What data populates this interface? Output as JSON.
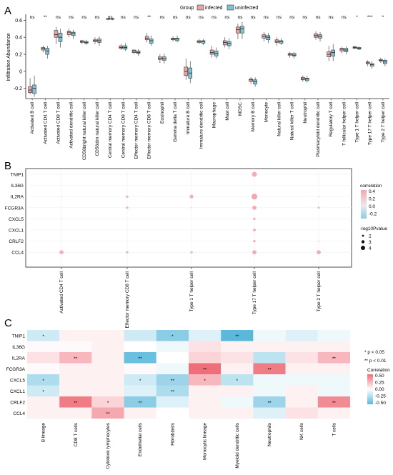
{
  "panels": [
    {
      "id": "A",
      "panel_label": "A",
      "chart_data": {
        "type": "boxplot",
        "title": "",
        "ylabel": "Infiltration Abundance",
        "xlabel": "",
        "ylim": [
          -0.32,
          0.67
        ],
        "yticks": [
          -0.2,
          0.0,
          0.2,
          0.4,
          0.6
        ],
        "ytick_labels": [
          "-0.2",
          "0",
          "0.2",
          "0.4",
          "0.6"
        ],
        "legend_title": "Group",
        "legend_position": "top",
        "series": [
          {
            "name": "infected",
            "color": "#e8a4a8"
          },
          {
            "name": "uninfected",
            "color": "#7ec4d4"
          }
        ],
        "categories": [
          "Activated B cell",
          "Activated CD4 T cell",
          "Activated CD8 T cell",
          "Activated dendritic cell",
          "CD56bright natural killer cell",
          "CD56dim natural killer cell",
          "Central memory CD4 T cell",
          "Central memory CD8 T cell",
          "Effector memory CD4 T cell",
          "Effector memory CD8 T cell",
          "Eosinophil",
          "Gamma delta T cell",
          "Immature  B cell",
          "Immature dendritic cell",
          "Macrophage",
          "Mast cell",
          "MDSC",
          "Memory B cell",
          "Monocyte",
          "Natural killer cell",
          "Natural killer T cell",
          "Neutrophil",
          "Plasmacytoid dendritic cell",
          "Regulatory T cell",
          "T follicular helper cell",
          "Type 1 T helper cell",
          "Type 17 T helper cell",
          "Type 2 T helper cell"
        ],
        "significance": [
          "ns",
          "**",
          "ns",
          "ns",
          "ns",
          "ns",
          "ns",
          "ns",
          "ns",
          "**",
          "ns",
          "ns",
          "ns",
          "ns",
          "ns",
          "ns",
          "ns",
          "ns",
          "ns",
          "ns",
          "ns",
          "ns",
          "ns",
          "ns",
          "ns",
          "*",
          "***",
          "*"
        ],
        "infected": [
          [
            -0.27,
            -0.25,
            -0.22,
            -0.18,
            -0.08
          ],
          [
            0.22,
            0.25,
            0.27,
            0.28,
            0.3
          ],
          [
            0.32,
            0.4,
            0.43,
            0.48,
            0.52
          ],
          [
            0.4,
            0.43,
            0.46,
            0.47,
            0.5
          ],
          [
            0.32,
            0.34,
            0.35,
            0.36,
            0.37
          ],
          [
            0.32,
            0.35,
            0.36,
            0.37,
            0.4
          ],
          [
            0.6,
            0.61,
            0.62,
            0.62,
            0.63
          ],
          [
            0.25,
            0.27,
            0.28,
            0.3,
            0.32
          ],
          [
            0.2,
            0.22,
            0.24,
            0.25,
            0.26
          ],
          [
            0.34,
            0.37,
            0.39,
            0.41,
            0.45
          ],
          [
            0.1,
            0.14,
            0.15,
            0.17,
            0.2
          ],
          [
            0.35,
            0.37,
            0.38,
            0.39,
            0.41
          ],
          [
            -0.1,
            -0.05,
            0.0,
            0.05,
            0.15
          ],
          [
            0.32,
            0.34,
            0.35,
            0.36,
            0.38
          ],
          [
            0.16,
            0.2,
            0.22,
            0.25,
            0.3
          ],
          [
            0.28,
            0.31,
            0.34,
            0.36,
            0.4
          ],
          [
            0.38,
            0.45,
            0.49,
            0.52,
            0.56
          ],
          [
            -0.15,
            -0.12,
            -0.1,
            -0.09,
            -0.07
          ],
          [
            0.35,
            0.39,
            0.41,
            0.43,
            0.46
          ],
          [
            0.3,
            0.34,
            0.35,
            0.37,
            0.4
          ],
          [
            0.16,
            0.19,
            0.2,
            0.21,
            0.23
          ],
          [
            -0.12,
            -0.1,
            -0.09,
            -0.07,
            -0.05
          ],
          [
            0.37,
            0.4,
            0.42,
            0.44,
            0.47
          ],
          [
            0.12,
            0.17,
            0.2,
            0.23,
            0.3
          ],
          [
            0.21,
            0.24,
            0.26,
            0.27,
            0.29
          ],
          [
            0.26,
            0.27,
            0.28,
            0.29,
            0.3
          ],
          [
            0.06,
            0.09,
            0.1,
            0.11,
            0.13
          ],
          [
            0.1,
            0.12,
            0.13,
            0.14,
            0.16
          ]
        ],
        "uninfected": [
          [
            -0.3,
            -0.26,
            -0.2,
            -0.16,
            -0.05
          ],
          [
            0.15,
            0.2,
            0.24,
            0.27,
            0.3
          ],
          [
            0.28,
            0.35,
            0.4,
            0.45,
            0.5
          ],
          [
            0.38,
            0.42,
            0.45,
            0.46,
            0.49
          ],
          [
            0.31,
            0.33,
            0.34,
            0.35,
            0.37
          ],
          [
            0.3,
            0.34,
            0.36,
            0.38,
            0.41
          ],
          [
            0.6,
            0.61,
            0.62,
            0.62,
            0.63
          ],
          [
            0.24,
            0.26,
            0.28,
            0.3,
            0.33
          ],
          [
            0.18,
            0.21,
            0.22,
            0.24,
            0.26
          ],
          [
            0.3,
            0.33,
            0.36,
            0.38,
            0.42
          ],
          [
            0.09,
            0.13,
            0.15,
            0.17,
            0.21
          ],
          [
            0.34,
            0.36,
            0.38,
            0.39,
            0.42
          ],
          [
            -0.14,
            -0.08,
            -0.02,
            0.04,
            0.12
          ],
          [
            0.31,
            0.33,
            0.35,
            0.36,
            0.38
          ],
          [
            0.15,
            0.18,
            0.21,
            0.24,
            0.28
          ],
          [
            0.26,
            0.3,
            0.33,
            0.35,
            0.39
          ],
          [
            0.38,
            0.45,
            0.5,
            0.53,
            0.58
          ],
          [
            -0.18,
            -0.15,
            -0.12,
            -0.1,
            -0.07
          ],
          [
            0.33,
            0.37,
            0.4,
            0.42,
            0.45
          ],
          [
            0.31,
            0.33,
            0.35,
            0.36,
            0.39
          ],
          [
            0.15,
            0.18,
            0.19,
            0.21,
            0.23
          ],
          [
            -0.13,
            -0.11,
            -0.09,
            -0.08,
            -0.05
          ],
          [
            0.35,
            0.39,
            0.41,
            0.43,
            0.46
          ],
          [
            0.12,
            0.18,
            0.22,
            0.25,
            0.32
          ],
          [
            0.2,
            0.23,
            0.25,
            0.27,
            0.29
          ],
          [
            0.25,
            0.26,
            0.27,
            0.28,
            0.29
          ],
          [
            0.03,
            0.06,
            0.08,
            0.09,
            0.12
          ],
          [
            0.06,
            0.09,
            0.11,
            0.13,
            0.15
          ]
        ]
      }
    },
    {
      "id": "B",
      "panel_label": "B",
      "chart_data": {
        "type": "dotplot",
        "title": "",
        "rows": [
          "TNIP1",
          "IL36G",
          "IL2RA",
          "FCGR3A",
          "CXCL5",
          "CXCL1",
          "CRLF2",
          "CCL4"
        ],
        "columns": [
          "Activated CD4 T cell",
          "Effector memory CD8 T cell",
          "Type 1 T helper cell",
          "Type 17 T helper cell",
          "Type 2 T helper cell"
        ],
        "correlation": [
          [
            null,
            null,
            null,
            0.45,
            null
          ],
          [
            null,
            null,
            null,
            null,
            null
          ],
          [
            0.3,
            0.35,
            0.4,
            0.5,
            0.3
          ],
          [
            null,
            0.35,
            0.3,
            0.45,
            -0.25
          ],
          [
            0.3,
            null,
            null,
            0.4,
            null
          ],
          [
            null,
            null,
            null,
            0.4,
            null
          ],
          [
            null,
            null,
            null,
            0.4,
            0.3
          ],
          [
            0.4,
            0.35,
            0.35,
            0.45,
            0.45
          ]
        ],
        "neg_log10_pvalue": [
          [
            null,
            null,
            null,
            3.5,
            null
          ],
          [
            null,
            null,
            null,
            null,
            null
          ],
          [
            1.2,
            2.0,
            2.8,
            4.0,
            1.2
          ],
          [
            null,
            2.0,
            1.2,
            3.0,
            1.8
          ],
          [
            1.2,
            null,
            null,
            2.0,
            null
          ],
          [
            null,
            null,
            null,
            2.2,
            null
          ],
          [
            null,
            null,
            null,
            2.0,
            1.2
          ],
          [
            3.0,
            2.0,
            2.0,
            3.0,
            3.0
          ]
        ],
        "color_legend_title": "correlation",
        "color_legend_ticks": [
          "0.4",
          "0.2",
          "0.0",
          "-0.2"
        ],
        "size_legend_title": "-log10Pvalue",
        "size_legend_ticks": [
          "2",
          "3",
          "4"
        ],
        "colors": {
          "pos": "#f4a7b0",
          "neg": "#7ec4e4"
        }
      }
    },
    {
      "id": "C",
      "panel_label": "C",
      "chart_data": {
        "type": "heatmap",
        "title": "",
        "rows": [
          "TNIP1",
          "IL36G",
          "IL2RA",
          "FCGR3A",
          "CXCL5",
          "CXCL1",
          "CRLF2",
          "CCL4"
        ],
        "columns": [
          "B lineage",
          "CD8 T cells",
          "Cytotoxic lymphocytes",
          "Endothelial cells",
          "Fibroblasts",
          "Monocytic lineage",
          "Myeloid dendritic cells",
          "Neutrophils",
          "NK cells",
          "T cells"
        ],
        "values": [
          [
            -0.15,
            0.05,
            0.05,
            -0.15,
            -0.35,
            -0.1,
            -0.5,
            -0.05,
            -0.1,
            -0.05
          ],
          [
            0.02,
            0.02,
            0.05,
            0.0,
            -0.05,
            0.1,
            0.05,
            0.05,
            0.05,
            0.05
          ],
          [
            0.1,
            0.25,
            0.05,
            -0.45,
            0.0,
            0.15,
            0.1,
            -0.2,
            0.1,
            0.25
          ],
          [
            0.02,
            0.05,
            0.05,
            0.02,
            -0.05,
            0.5,
            0.05,
            0.45,
            0.05,
            0.05
          ],
          [
            -0.25,
            0.05,
            0.05,
            -0.15,
            -0.3,
            0.25,
            -0.2,
            -0.05,
            -0.05,
            -0.05
          ],
          [
            -0.15,
            0.05,
            0.05,
            -0.1,
            -0.25,
            0.05,
            0.05,
            -0.05,
            0.05,
            -0.05
          ],
          [
            0.05,
            0.45,
            0.15,
            -0.35,
            -0.1,
            0.05,
            -0.05,
            -0.3,
            0.05,
            0.4
          ],
          [
            0.05,
            0.05,
            0.3,
            0.05,
            0.0,
            0.05,
            0.05,
            -0.1,
            0.1,
            0.05
          ]
        ],
        "stars": [
          [
            "*",
            "",
            "",
            "",
            "*",
            "",
            "**",
            "",
            "",
            ""
          ],
          [
            "",
            "",
            "",
            "",
            "",
            "",
            "",
            "",
            "",
            ""
          ],
          [
            "",
            "**",
            "",
            "**",
            "",
            "",
            "",
            "",
            "",
            "**"
          ],
          [
            "",
            "",
            "",
            "",
            "",
            "**",
            "",
            "**",
            "",
            ""
          ],
          [
            "*",
            "",
            "",
            "*",
            "**",
            "*",
            "*",
            "",
            "",
            ""
          ],
          [
            "*",
            "",
            "",
            "",
            "**",
            "",
            "",
            "",
            "",
            ""
          ],
          [
            "",
            "**",
            "*",
            "**",
            "",
            "",
            "",
            "**",
            "",
            "**"
          ],
          [
            "",
            "",
            "**",
            "",
            "",
            "",
            "",
            "",
            "",
            ""
          ]
        ],
        "sig_legend": [
          "* p < 0.05",
          "** p < 0.01"
        ],
        "color_legend_title": "Correlation",
        "color_legend_ticks": [
          "0.50",
          "0.25",
          "0.00",
          "-0.25",
          "-0.50"
        ],
        "colors": {
          "pos": "#ee6f79",
          "neg": "#5bb8db"
        }
      }
    }
  ]
}
